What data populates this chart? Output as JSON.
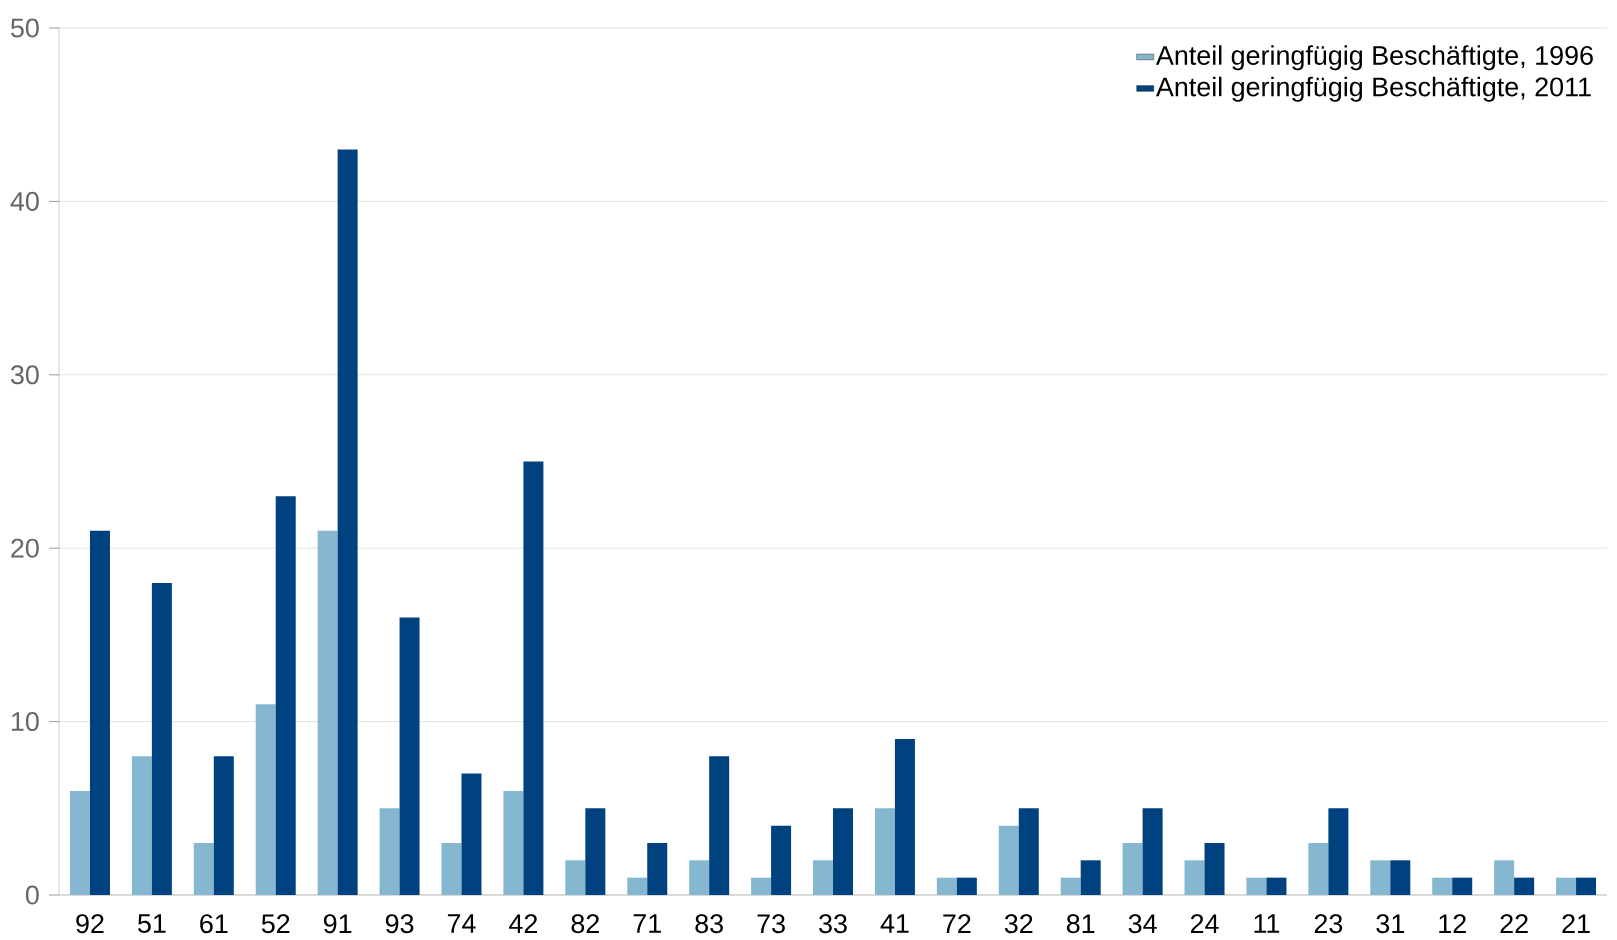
{
  "chart_data": {
    "type": "bar",
    "categories": [
      "92",
      "51",
      "61",
      "52",
      "91",
      "93",
      "74",
      "42",
      "82",
      "71",
      "83",
      "73",
      "33",
      "41",
      "72",
      "32",
      "81",
      "34",
      "24",
      "11",
      "23",
      "31",
      "12",
      "22",
      "21"
    ],
    "series": [
      {
        "name": "Anteil geringfügig Beschäftigte, 1996",
        "color": "#85b8d0",
        "values": [
          6,
          8,
          3,
          11,
          21,
          5,
          3,
          6,
          2,
          1,
          2,
          1,
          2,
          5,
          1,
          4,
          1,
          3,
          2,
          1,
          3,
          2,
          1,
          2,
          1
        ]
      },
      {
        "name": "Anteil geringfügig Beschäftigte, 2011",
        "color": "#00427f",
        "values": [
          21,
          18,
          8,
          23,
          43,
          16,
          7,
          25,
          5,
          3,
          8,
          4,
          5,
          9,
          1,
          5,
          2,
          5,
          3,
          1,
          5,
          2,
          1,
          1,
          1
        ]
      }
    ],
    "ylim": [
      0,
      50
    ],
    "yticks": [
      0,
      10,
      20,
      30,
      40,
      50
    ],
    "grid": "y",
    "legend": "top right"
  }
}
